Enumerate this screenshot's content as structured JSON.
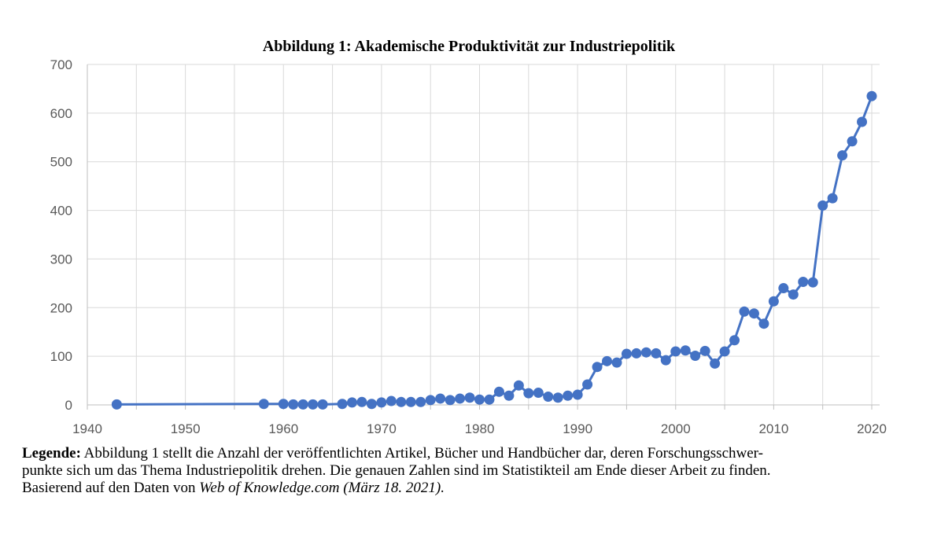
{
  "chart_data": {
    "type": "line",
    "title": "Abbildung 1: Akademische Produktivität zur Industriepolitik",
    "xlabel": "",
    "ylabel": "",
    "xlim": [
      1940,
      2020
    ],
    "ylim": [
      0,
      700
    ],
    "x_ticks": [
      1940,
      1950,
      1960,
      1970,
      1980,
      1990,
      2000,
      2010,
      2020
    ],
    "y_ticks": [
      0,
      100,
      200,
      300,
      400,
      500,
      600,
      700
    ],
    "grid": true,
    "color": "#4472C4",
    "series": [
      {
        "x": [
          1943,
          1958,
          1960,
          1961,
          1962,
          1963,
          1964,
          1966,
          1967,
          1968,
          1969,
          1970,
          1971,
          1972,
          1973,
          1974,
          1975,
          1976,
          1977,
          1978,
          1979,
          1980,
          1981,
          1982,
          1983,
          1984,
          1985,
          1986,
          1987,
          1988,
          1989,
          1990,
          1991,
          1992,
          1993,
          1994,
          1995,
          1996,
          1997,
          1998,
          1999,
          2000,
          2001,
          2002,
          2003,
          2004,
          2005,
          2006,
          2007,
          2008,
          2009,
          2010,
          2011,
          2012,
          2013,
          2014,
          2015,
          2016,
          2017,
          2018,
          2019,
          2020
        ],
        "y": [
          1,
          2,
          2,
          1,
          1,
          1,
          1,
          2,
          5,
          6,
          2,
          5,
          8,
          6,
          6,
          6,
          10,
          13,
          10,
          13,
          15,
          11,
          11,
          27,
          19,
          40,
          24,
          25,
          17,
          15,
          19,
          21,
          42,
          78,
          90,
          87,
          105,
          106,
          108,
          106,
          92,
          110,
          112,
          101,
          111,
          85,
          110,
          133,
          192,
          188,
          167,
          213,
          240,
          227,
          253,
          252,
          410,
          425,
          513,
          542,
          582,
          635
        ]
      }
    ]
  },
  "caption": {
    "label": "Legende:",
    "line1": " Abbildung 1 stellt die Anzahl der veröffentlichten Artikel, Bücher und Handbücher dar, deren Forschungsschwer-",
    "line2": "punkte sich um das Thema Industriepolitik drehen. Die genauen Zahlen sind im Statistikteil am Ende dieser Arbeit zu finden.",
    "line3": "Basierend auf den Daten von ",
    "source": "Web of Knowledge.com (März 18. 2021)."
  }
}
